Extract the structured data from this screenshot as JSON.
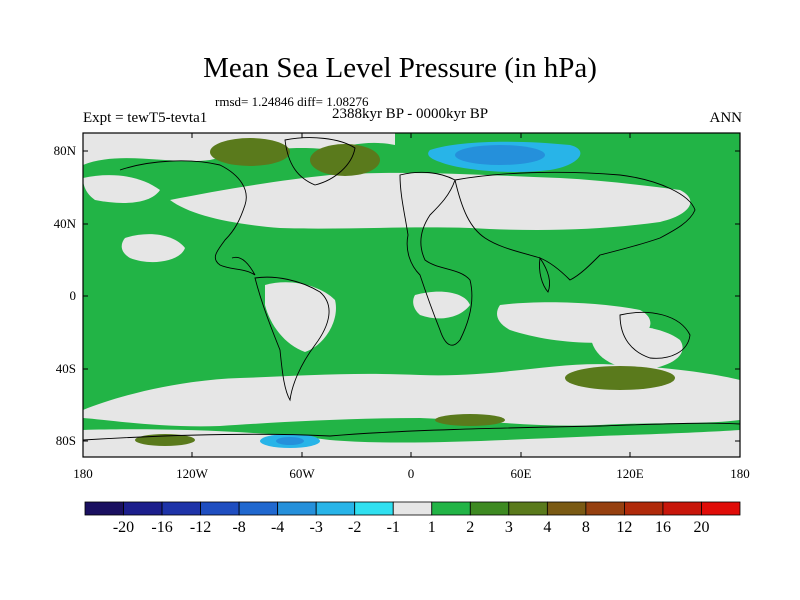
{
  "title": "Mean Sea Level Pressure (in hPa)",
  "stats": "rmsd= 1.24846 diff= 1.08276",
  "experiment": "Expt = tewT5-tevta1",
  "period": "2388kyr BP - 0000kyr BP",
  "season": "ANN",
  "lat_labels": [
    "80N",
    "40N",
    "0",
    "40S",
    "80S"
  ],
  "lon_labels": [
    "180",
    "120W",
    "60W",
    "0",
    "60E",
    "120E",
    "180"
  ],
  "colorbar": {
    "labels": [
      "-20",
      "-16",
      "-12",
      "-8",
      "-4",
      "-3",
      "-2",
      "-1",
      "1",
      "2",
      "3",
      "4",
      "8",
      "12",
      "16",
      "20"
    ],
    "colors": [
      "#1a1060",
      "#1c1e8c",
      "#1e33a8",
      "#1f4ec0",
      "#2068cf",
      "#2590db",
      "#28b4e8",
      "#30e0f0",
      "#e6e6e6",
      "#22b446",
      "#3e8a22",
      "#5a7a1c",
      "#7a5a14",
      "#964010",
      "#b02a0a",
      "#c8160a",
      "#e00c08"
    ]
  },
  "map_colors": {
    "ocean_default": "#22b446",
    "neutral": "#e6e6e6",
    "positive_strong": "#5a7a1c",
    "negative_light": "#28b4e8",
    "negative_mid": "#2590db",
    "coast": "#000000"
  }
}
